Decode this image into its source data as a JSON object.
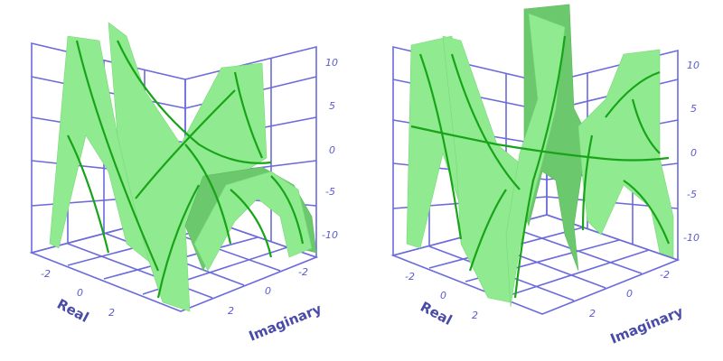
{
  "panels": [
    {
      "id": "left",
      "z_ticks": [
        "10",
        "5",
        "0",
        "-5",
        "-10"
      ],
      "real_ticks": [
        "-2",
        "0",
        "2"
      ],
      "imag_ticks": [
        "-2",
        "0",
        "2"
      ],
      "real_label": "Real",
      "imag_label": "Imaginary"
    },
    {
      "id": "right",
      "z_ticks": [
        "10",
        "5",
        "0",
        "-5",
        "-10"
      ],
      "real_ticks": [
        "-2",
        "0",
        "2"
      ],
      "imag_ticks": [
        "-2",
        "0",
        "2"
      ],
      "real_label": "Real",
      "imag_label": "Imaginary"
    }
  ],
  "colors": {
    "grid": "#6b6bdc",
    "surface": "#90ea90",
    "contour": "#18a418",
    "label": "#4a4aa8"
  }
}
